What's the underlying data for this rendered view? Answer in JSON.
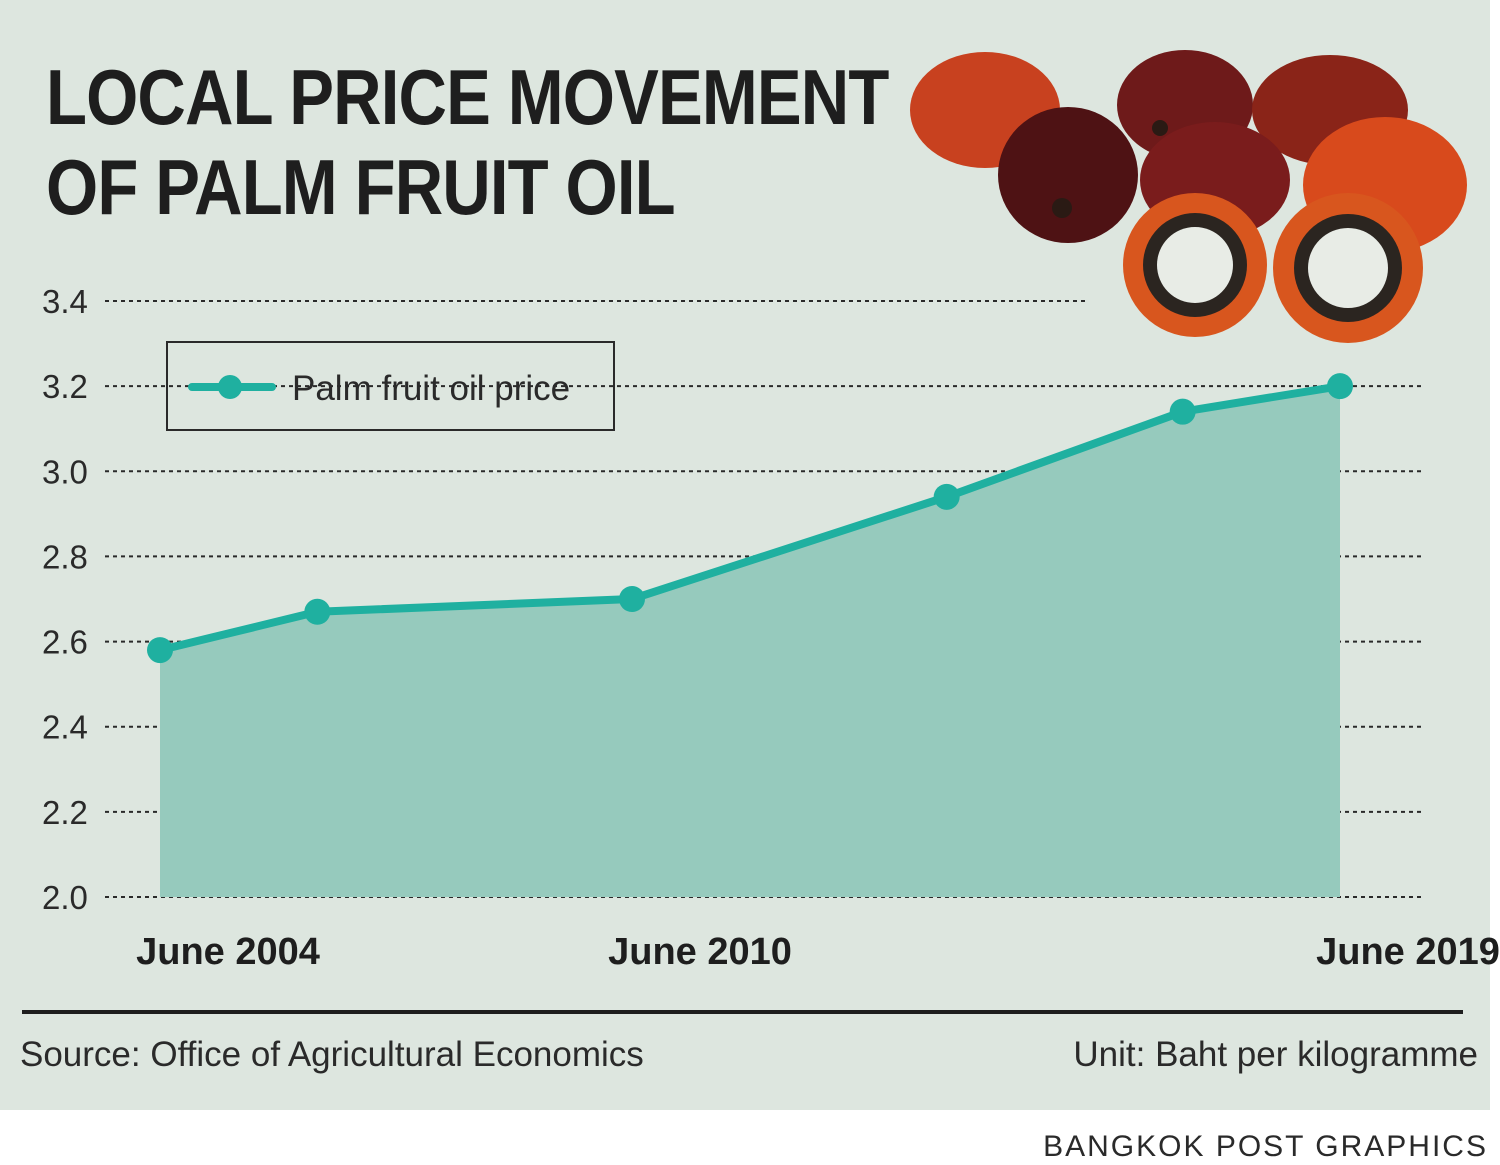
{
  "title_lines": [
    "LOCAL PRICE MOVEMENT",
    "OF PALM FRUIT OIL"
  ],
  "source": "Source: Office of Agricultural Economics",
  "unit": "Unit: Baht per kilogramme",
  "credit": "BANGKOK POST GRAPHICS",
  "image": {
    "icon": "palm-fruit-photo"
  },
  "colors": {
    "background": "#dde6df",
    "line": "#1fb0a0",
    "area": "#96cabd",
    "text": "#1e1e1e"
  },
  "chart_data": {
    "type": "area",
    "title": "LOCAL PRICE MOVEMENT OF PALM FRUIT OIL",
    "xlabel": "",
    "ylabel": "",
    "unit": "Unit: Baht per kilogramme",
    "ylim": [
      2.0,
      3.4
    ],
    "yticks": [
      "2.0",
      "2.2",
      "2.4",
      "2.6",
      "2.8",
      "3.0",
      "3.2",
      "3.4"
    ],
    "xlim": [
      2004,
      2019
    ],
    "x_tick_labels": [
      {
        "x": 2004,
        "label": "June 2004"
      },
      {
        "x": 2010,
        "label": "June 2010"
      },
      {
        "x": 2019,
        "label": "June 2019"
      }
    ],
    "legend": {
      "position": "top-left",
      "entries": [
        "Palm fruit oil price"
      ]
    },
    "grid": true,
    "series": [
      {
        "name": "Palm fruit oil price",
        "points": [
          {
            "x": 2004,
            "y": 2.58
          },
          {
            "x": 2006,
            "y": 2.67
          },
          {
            "x": 2010,
            "y": 2.7
          },
          {
            "x": 2014,
            "y": 2.94
          },
          {
            "x": 2017,
            "y": 3.14
          },
          {
            "x": 2019,
            "y": 3.2
          }
        ]
      }
    ]
  }
}
